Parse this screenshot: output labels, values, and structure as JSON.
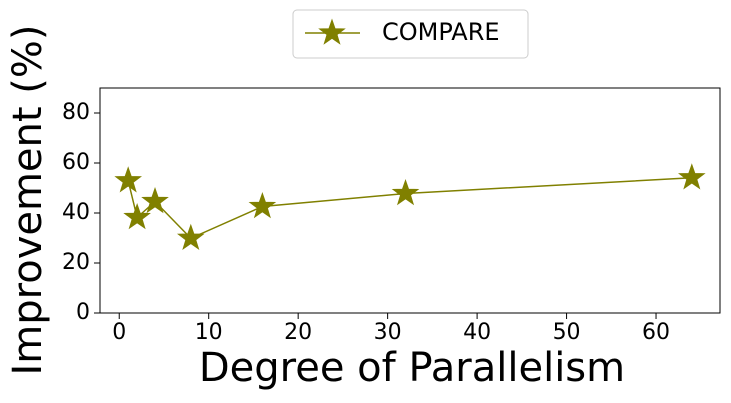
{
  "chart_data": {
    "type": "line",
    "x": [
      1,
      2,
      4,
      8,
      16,
      32,
      64
    ],
    "series": [
      {
        "name": "COMPARE",
        "color": "#808000",
        "values": [
          52.9,
          38.2,
          44.6,
          29.9,
          42.6,
          47.8,
          54.1
        ]
      }
    ],
    "xlabel": "Degree of Parallelism",
    "ylabel": "Improvement (%)",
    "xlim": [
      -2.15,
      67.15
    ],
    "ylim": [
      0,
      90
    ],
    "xticks": [
      0,
      10,
      20,
      30,
      40,
      50,
      60
    ],
    "yticks": [
      0,
      20,
      40,
      60,
      80
    ],
    "marker": "star",
    "legend": "top"
  }
}
